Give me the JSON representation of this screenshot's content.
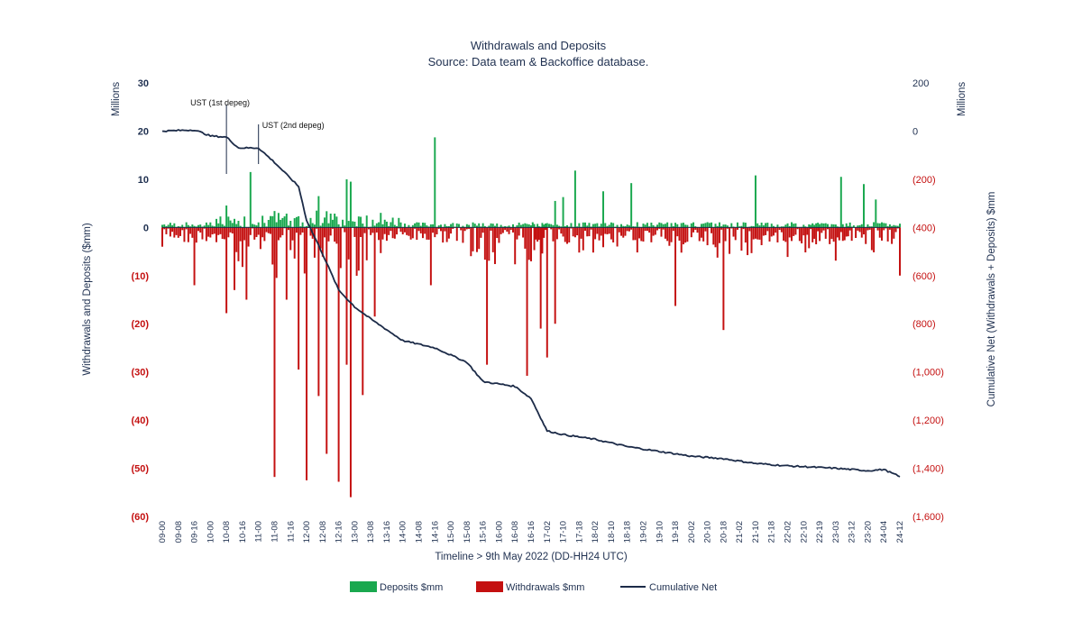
{
  "chart_data": {
    "type": "bar+line",
    "title": "Withdrawals and Deposits",
    "subtitle": "Source: Data team & Backoffice database.",
    "xlabel": "Timeline > 9th May 2022 (DD-HH24 UTC)",
    "ylabel_left": "Withdrawals and Deposits ($mm)",
    "ylabel_right": "Cumulative Net (Withdrawals + Deposits) $mm",
    "unit_left": "Millions",
    "unit_right": "Millions",
    "ylim_left": [
      -60,
      30
    ],
    "ylim_right": [
      -1600,
      200
    ],
    "yticks_left": [
      "30",
      "20",
      "10",
      "0",
      "(10)",
      "(20)",
      "(30)",
      "(40)",
      "(50)",
      "(60)"
    ],
    "yticks_right": [
      "200",
      "0",
      "(200)",
      "(400)",
      "(600)",
      "(800)",
      "(1,000)",
      "(1,200)",
      "(1,400)",
      "(1,600)"
    ],
    "categories": [
      "09-00",
      "09-08",
      "09-16",
      "10-00",
      "10-08",
      "10-16",
      "11-00",
      "11-08",
      "11-16",
      "12-00",
      "12-08",
      "12-16",
      "13-00",
      "13-08",
      "13-16",
      "14-00",
      "14-08",
      "14-16",
      "15-00",
      "15-08",
      "15-16",
      "16-00",
      "16-08",
      "16-16",
      "17-02",
      "17-10",
      "17-18",
      "18-02",
      "18-10",
      "18-18",
      "19-02",
      "19-10",
      "19-18",
      "20-02",
      "20-10",
      "20-18",
      "21-02",
      "21-10",
      "21-18",
      "22-02",
      "22-10",
      "22-19",
      "23-03",
      "23-12",
      "23-20",
      "24-04",
      "24-12"
    ],
    "annotations": [
      {
        "label": "UST (1st depeg)",
        "x_category": "10-08"
      },
      {
        "label": "UST (2nd depeg)",
        "x_category": "11-00"
      }
    ],
    "grid": false,
    "legend_position": "bottom",
    "series": [
      {
        "name": "Deposits $mm",
        "type": "bar",
        "color": "#1aa84f",
        "peaks": [
          {
            "x": "10-20",
            "value": 11.5
          },
          {
            "x": "12-06",
            "value": 6.5
          },
          {
            "x": "12-20",
            "value": 10
          },
          {
            "x": "12-22",
            "value": 9.5
          },
          {
            "x": "14-16",
            "value": 18.7
          },
          {
            "x": "17-06",
            "value": 5.5
          },
          {
            "x": "17-10",
            "value": 6.3
          },
          {
            "x": "17-16",
            "value": 11.8
          },
          {
            "x": "18-06",
            "value": 7.5
          },
          {
            "x": "18-20",
            "value": 9.2
          },
          {
            "x": "21-10",
            "value": 10.8
          },
          {
            "x": "23-06",
            "value": 10.5
          },
          {
            "x": "23-18",
            "value": 9
          },
          {
            "x": "24-00",
            "value": 5.8
          }
        ]
      },
      {
        "name": "Withdrawals $mm",
        "type": "bar",
        "color": "#c41010",
        "peaks": [
          {
            "x": "09-00",
            "value": -4
          },
          {
            "x": "09-16",
            "value": -12
          },
          {
            "x": "10-08",
            "value": -17.8
          },
          {
            "x": "10-12",
            "value": -13
          },
          {
            "x": "10-18",
            "value": -15
          },
          {
            "x": "11-08",
            "value": -51.8
          },
          {
            "x": "11-14",
            "value": -15
          },
          {
            "x": "11-20",
            "value": -29.5
          },
          {
            "x": "12-00",
            "value": -52.5
          },
          {
            "x": "12-06",
            "value": -35
          },
          {
            "x": "12-10",
            "value": -47
          },
          {
            "x": "12-16",
            "value": -52.8
          },
          {
            "x": "12-20",
            "value": -28.5
          },
          {
            "x": "12-22",
            "value": -56
          },
          {
            "x": "13-04",
            "value": -34.8
          },
          {
            "x": "13-10",
            "value": -18.5
          },
          {
            "x": "14-14",
            "value": -12
          },
          {
            "x": "15-18",
            "value": -28.5
          },
          {
            "x": "16-14",
            "value": -30.8
          },
          {
            "x": "16-22",
            "value": -21
          },
          {
            "x": "17-02",
            "value": -27
          },
          {
            "x": "17-06",
            "value": -20
          },
          {
            "x": "19-18",
            "value": -16.3
          },
          {
            "x": "20-18",
            "value": -21.3
          },
          {
            "x": "24-12",
            "value": -10
          }
        ]
      },
      {
        "name": "Cumulative Net",
        "type": "line",
        "color": "#1c2b48",
        "axis": "right",
        "points": [
          {
            "x": "09-00",
            "value": 0
          },
          {
            "x": "09-16",
            "value": 5
          },
          {
            "x": "10-00",
            "value": -20
          },
          {
            "x": "10-08",
            "value": -25
          },
          {
            "x": "10-14",
            "value": -70
          },
          {
            "x": "11-00",
            "value": -70
          },
          {
            "x": "11-08",
            "value": -130
          },
          {
            "x": "11-20",
            "value": -230
          },
          {
            "x": "12-00",
            "value": -370
          },
          {
            "x": "12-08",
            "value": -510
          },
          {
            "x": "12-16",
            "value": -660
          },
          {
            "x": "13-00",
            "value": -730
          },
          {
            "x": "13-08",
            "value": -780
          },
          {
            "x": "14-00",
            "value": -870
          },
          {
            "x": "14-16",
            "value": -900
          },
          {
            "x": "15-08",
            "value": -960
          },
          {
            "x": "15-16",
            "value": -1040
          },
          {
            "x": "16-08",
            "value": -1060
          },
          {
            "x": "16-16",
            "value": -1110
          },
          {
            "x": "17-02",
            "value": -1245
          },
          {
            "x": "17-10",
            "value": -1260
          },
          {
            "x": "18-02",
            "value": -1280
          },
          {
            "x": "18-18",
            "value": -1310
          },
          {
            "x": "19-10",
            "value": -1330
          },
          {
            "x": "20-02",
            "value": -1350
          },
          {
            "x": "20-18",
            "value": -1360
          },
          {
            "x": "21-10",
            "value": -1380
          },
          {
            "x": "22-02",
            "value": -1390
          },
          {
            "x": "23-03",
            "value": -1400
          },
          {
            "x": "23-20",
            "value": -1410
          },
          {
            "x": "24-04",
            "value": -1405
          },
          {
            "x": "24-12",
            "value": -1435
          }
        ]
      }
    ]
  }
}
